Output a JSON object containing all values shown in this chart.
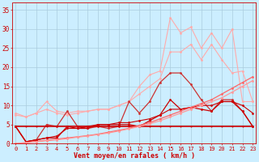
{
  "title": "",
  "xlabel": "Vent moyen/en rafales ( km/h )",
  "bg_color": "#cceeff",
  "grid_color": "#aaccdd",
  "x_values": [
    0,
    1,
    2,
    3,
    4,
    5,
    6,
    7,
    8,
    9,
    10,
    11,
    12,
    13,
    14,
    15,
    16,
    17,
    18,
    19,
    20,
    21,
    22,
    23
  ],
  "series": [
    {
      "color": "#ffaaaa",
      "linewidth": 0.8,
      "markersize": 2.0,
      "y": [
        8,
        7,
        8,
        11,
        8.5,
        8,
        8.5,
        8.5,
        9,
        9,
        10,
        11,
        15,
        18,
        19,
        33,
        29,
        30.5,
        25,
        29,
        25,
        30,
        11,
        11
      ]
    },
    {
      "color": "#ffaaaa",
      "linewidth": 0.8,
      "markersize": 2.0,
      "y": [
        7.5,
        7,
        8,
        9,
        8,
        7.5,
        8,
        8.5,
        9,
        9,
        10,
        11,
        13,
        15,
        17,
        24,
        24,
        26,
        22,
        26,
        22,
        18.5,
        19,
        11
      ]
    },
    {
      "color": "#cc3333",
      "linewidth": 0.9,
      "markersize": 2.0,
      "y": [
        4.5,
        0.5,
        1,
        5,
        4.5,
        8.5,
        4.5,
        4,
        4.5,
        4,
        4.5,
        11,
        8,
        11,
        16,
        18.5,
        18.5,
        15.5,
        11.5,
        8.5,
        11.5,
        11.5,
        8.5,
        4.5
      ]
    },
    {
      "color": "#cc0000",
      "linewidth": 0.9,
      "markersize": 2.0,
      "y": [
        4.5,
        0.5,
        1,
        1.5,
        1.5,
        4.5,
        4,
        4,
        5,
        5,
        5,
        5,
        4.5,
        6,
        7.5,
        11.5,
        9,
        9.5,
        9,
        8.5,
        11,
        11,
        8.5,
        4.5
      ]
    },
    {
      "color": "#cc0000",
      "linewidth": 1.2,
      "markersize": 1.5,
      "y": [
        4.5,
        4.5,
        4.5,
        4.5,
        4.5,
        4.5,
        4.5,
        4.5,
        4.5,
        4.5,
        4.5,
        4.5,
        4.5,
        4.5,
        4.5,
        4.5,
        4.5,
        4.5,
        4.5,
        4.5,
        4.5,
        4.5,
        4.5,
        4.5
      ]
    },
    {
      "color": "#cc0000",
      "linewidth": 0.8,
      "markersize": 2.0,
      "y": [
        4.5,
        0.5,
        1,
        1.5,
        2,
        4,
        4,
        4.5,
        5,
        5,
        5.5,
        5.5,
        6,
        6.5,
        7.5,
        9,
        9,
        9.5,
        10,
        10,
        11,
        11,
        10,
        8
      ]
    },
    {
      "color": "#ff6666",
      "linewidth": 0.9,
      "markersize": 2.0,
      "y": [
        0,
        0.3,
        0.6,
        0.9,
        1.2,
        1.5,
        1.8,
        2.1,
        2.5,
        3.0,
        3.5,
        4.0,
        4.8,
        5.5,
        6.5,
        7.5,
        8.5,
        9.5,
        10.5,
        11.5,
        13.0,
        14.5,
        16.0,
        17.5
      ]
    },
    {
      "color": "#ff9999",
      "linewidth": 0.9,
      "markersize": 2.0,
      "y": [
        0,
        0.2,
        0.5,
        0.8,
        1.0,
        1.3,
        1.7,
        2.0,
        2.4,
        2.8,
        3.3,
        3.9,
        4.5,
        5.2,
        6.0,
        7.0,
        8.0,
        9.0,
        10.0,
        11.0,
        12.0,
        13.5,
        15.0,
        16.5
      ]
    }
  ],
  "xlim": [
    -0.3,
    23.3
  ],
  "ylim": [
    0,
    37
  ],
  "yticks": [
    0,
    5,
    10,
    15,
    20,
    25,
    30,
    35
  ],
  "xticks": [
    0,
    1,
    2,
    3,
    4,
    5,
    6,
    7,
    8,
    9,
    10,
    11,
    12,
    13,
    14,
    15,
    16,
    17,
    18,
    19,
    20,
    21,
    22,
    23
  ],
  "tick_color": "#cc0000",
  "label_color": "#cc0000",
  "axis_color": "#cc0000",
  "xlabel_fontsize": 6.0,
  "ytick_fontsize": 5.5,
  "xtick_fontsize": 5.0
}
